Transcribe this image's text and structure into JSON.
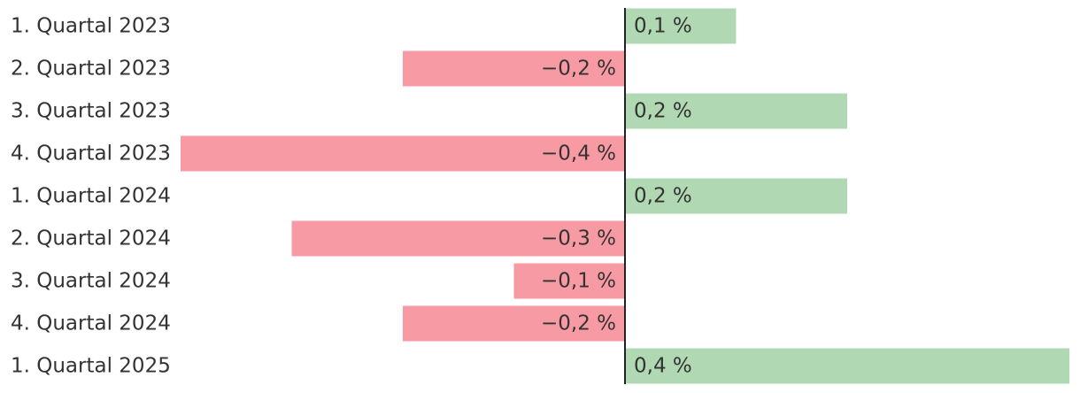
{
  "chart_data": {
    "type": "bar",
    "orientation": "horizontal",
    "categories": [
      "1. Quartal 2023",
      "2. Quartal 2023",
      "3. Quartal 2023",
      "4. Quartal 2023",
      "1. Quartal 2024",
      "2. Quartal 2024",
      "3. Quartal 2024",
      "4. Quartal 2024",
      "1. Quartal 2025"
    ],
    "values": [
      0.1,
      -0.2,
      0.2,
      -0.4,
      0.2,
      -0.3,
      -0.1,
      -0.2,
      0.4
    ],
    "value_labels": [
      "0,1 %",
      "−0,2 %",
      "0,2 %",
      "−0,4 %",
      "0,2 %",
      "−0,3 %",
      "−0,1 %",
      "−0,2 %",
      "0,4 %"
    ],
    "xlim": [
      -0.4,
      0.4
    ],
    "grid": false,
    "colors": {
      "positive": "#b0d8b2",
      "negative": "#f89aa4",
      "axis": "#222222",
      "text": "#333333"
    }
  }
}
